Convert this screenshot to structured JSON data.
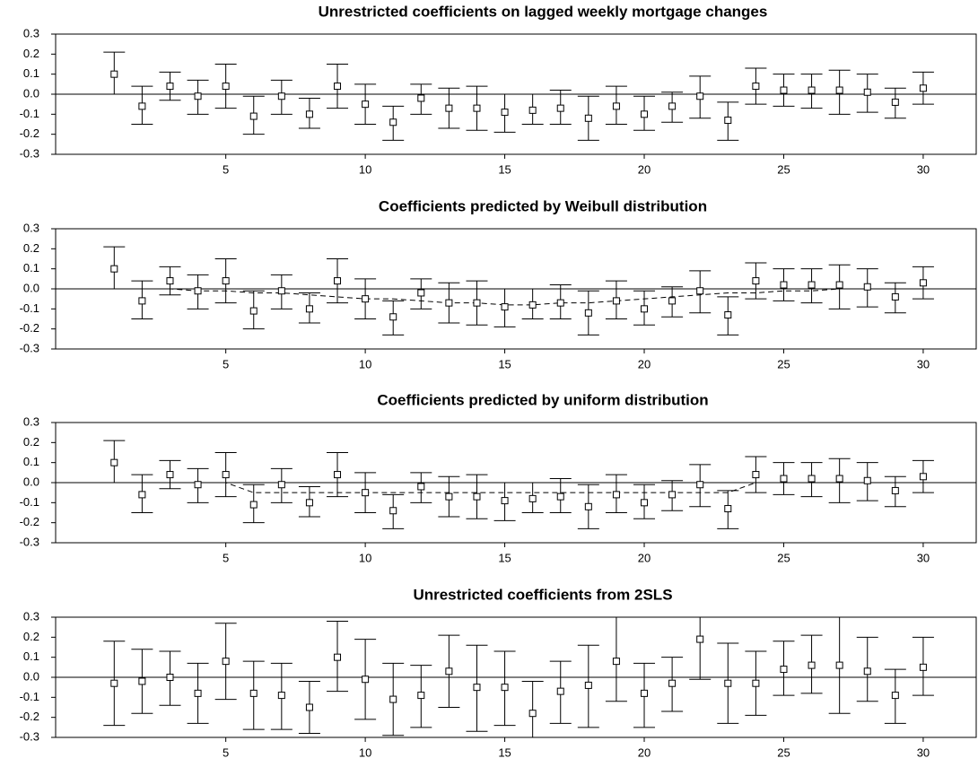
{
  "chart_data": [
    {
      "type": "errorbar",
      "title": "Unrestricted coefficients on lagged weekly mortgage changes",
      "x": [
        1,
        2,
        3,
        4,
        5,
        6,
        7,
        8,
        9,
        10,
        11,
        12,
        13,
        14,
        15,
        16,
        17,
        18,
        19,
        20,
        21,
        22,
        23,
        24,
        25,
        26,
        27,
        28,
        29,
        30
      ],
      "values": [
        0.1,
        -0.06,
        0.04,
        -0.01,
        0.04,
        -0.11,
        -0.01,
        -0.1,
        0.04,
        -0.05,
        -0.14,
        -0.02,
        -0.07,
        -0.07,
        -0.09,
        -0.08,
        -0.07,
        -0.12,
        -0.06,
        -0.1,
        -0.06,
        -0.01,
        -0.13,
        0.04,
        0.02,
        0.02,
        0.02,
        0.01,
        -0.04,
        0.03
      ],
      "lower": [
        0.0,
        -0.15,
        -0.03,
        -0.1,
        -0.07,
        -0.2,
        -0.1,
        -0.17,
        -0.07,
        -0.15,
        -0.23,
        -0.1,
        -0.17,
        -0.18,
        -0.19,
        -0.15,
        -0.15,
        -0.23,
        -0.15,
        -0.18,
        -0.14,
        -0.12,
        -0.23,
        -0.05,
        -0.06,
        -0.07,
        -0.1,
        -0.09,
        -0.12,
        -0.05
      ],
      "upper": [
        0.21,
        0.04,
        0.11,
        0.07,
        0.15,
        -0.01,
        0.07,
        -0.02,
        0.15,
        0.05,
        -0.06,
        0.05,
        0.03,
        0.04,
        0.0,
        0.0,
        0.02,
        -0.01,
        0.04,
        -0.01,
        0.01,
        0.09,
        -0.04,
        0.13,
        0.1,
        0.1,
        0.12,
        0.1,
        0.03,
        0.11
      ],
      "xlim": [
        -1.1,
        31.9
      ],
      "xticks": [
        5,
        10,
        15,
        20,
        25,
        30
      ],
      "ylim": [
        -0.3,
        0.3
      ],
      "yticks": [
        -0.3,
        -0.2,
        -0.1,
        {
          "value": 0,
          "label": "0.0"
        },
        0.1,
        0.2,
        0.3
      ],
      "zero_line": true,
      "color": "#000000"
    },
    {
      "type": "errorbar",
      "title": "Coefficients predicted by Weibull distribution",
      "x": [
        1,
        2,
        3,
        4,
        5,
        6,
        7,
        8,
        9,
        10,
        11,
        12,
        13,
        14,
        15,
        16,
        17,
        18,
        19,
        20,
        21,
        22,
        23,
        24,
        25,
        26,
        27,
        28,
        29,
        30
      ],
      "values": [
        0.1,
        -0.06,
        0.04,
        -0.01,
        0.04,
        -0.11,
        -0.01,
        -0.1,
        0.04,
        -0.05,
        -0.14,
        -0.02,
        -0.07,
        -0.07,
        -0.09,
        -0.08,
        -0.07,
        -0.12,
        -0.06,
        -0.1,
        -0.06,
        -0.01,
        -0.13,
        0.04,
        0.02,
        0.02,
        0.02,
        0.01,
        -0.04,
        0.03
      ],
      "lower": [
        0.0,
        -0.15,
        -0.03,
        -0.1,
        -0.07,
        -0.2,
        -0.1,
        -0.17,
        -0.07,
        -0.15,
        -0.23,
        -0.1,
        -0.17,
        -0.18,
        -0.19,
        -0.15,
        -0.15,
        -0.23,
        -0.15,
        -0.18,
        -0.14,
        -0.12,
        -0.23,
        -0.05,
        -0.06,
        -0.07,
        -0.1,
        -0.09,
        -0.12,
        -0.05
      ],
      "upper": [
        0.21,
        0.04,
        0.11,
        0.07,
        0.15,
        -0.01,
        0.07,
        -0.02,
        0.15,
        0.05,
        -0.06,
        0.05,
        0.03,
        0.04,
        0.0,
        0.0,
        0.02,
        -0.01,
        0.04,
        -0.01,
        0.01,
        0.09,
        -0.04,
        0.13,
        0.1,
        0.1,
        0.12,
        0.1,
        0.03,
        0.11
      ],
      "line_values": [
        0.0,
        0.0,
        0.0,
        -0.01,
        -0.01,
        -0.02,
        -0.02,
        -0.03,
        -0.04,
        -0.05,
        -0.05,
        -0.06,
        -0.07,
        -0.07,
        -0.08,
        -0.08,
        -0.07,
        -0.07,
        -0.06,
        -0.05,
        -0.04,
        -0.03,
        -0.02,
        -0.02,
        -0.01,
        -0.01,
        0.0,
        0.0,
        0.0,
        0.0
      ],
      "xlim": [
        -1.1,
        31.9
      ],
      "xticks": [
        5,
        10,
        15,
        20,
        25,
        30
      ],
      "ylim": [
        -0.3,
        0.3
      ],
      "yticks": [
        -0.3,
        -0.2,
        -0.1,
        {
          "value": 0,
          "label": "0.0"
        },
        0.1,
        0.2,
        0.3
      ],
      "zero_line": true,
      "color": "#000000"
    },
    {
      "type": "errorbar",
      "title": "Coefficients predicted by uniform distribution",
      "x": [
        1,
        2,
        3,
        4,
        5,
        6,
        7,
        8,
        9,
        10,
        11,
        12,
        13,
        14,
        15,
        16,
        17,
        18,
        19,
        20,
        21,
        22,
        23,
        24,
        25,
        26,
        27,
        28,
        29,
        30
      ],
      "values": [
        0.1,
        -0.06,
        0.04,
        -0.01,
        0.04,
        -0.11,
        -0.01,
        -0.1,
        0.04,
        -0.05,
        -0.14,
        -0.02,
        -0.07,
        -0.07,
        -0.09,
        -0.08,
        -0.07,
        -0.12,
        -0.06,
        -0.1,
        -0.06,
        -0.01,
        -0.13,
        0.04,
        0.02,
        0.02,
        0.02,
        0.01,
        -0.04,
        0.03
      ],
      "lower": [
        0.0,
        -0.15,
        -0.03,
        -0.1,
        -0.07,
        -0.2,
        -0.1,
        -0.17,
        -0.07,
        -0.15,
        -0.23,
        -0.1,
        -0.17,
        -0.18,
        -0.19,
        -0.15,
        -0.15,
        -0.23,
        -0.15,
        -0.18,
        -0.14,
        -0.12,
        -0.23,
        -0.05,
        -0.06,
        -0.07,
        -0.1,
        -0.09,
        -0.12,
        -0.05
      ],
      "upper": [
        0.21,
        0.04,
        0.11,
        0.07,
        0.15,
        -0.01,
        0.07,
        -0.02,
        0.15,
        0.05,
        -0.06,
        0.05,
        0.03,
        0.04,
        0.0,
        0.0,
        0.02,
        -0.01,
        0.04,
        -0.01,
        0.01,
        0.09,
        -0.04,
        0.13,
        0.1,
        0.1,
        0.12,
        0.1,
        0.03,
        0.11
      ],
      "line_values": [
        0.0,
        0.0,
        0.0,
        0.0,
        0.0,
        -0.05,
        -0.05,
        -0.05,
        -0.05,
        -0.05,
        -0.05,
        -0.05,
        -0.05,
        -0.05,
        -0.05,
        -0.05,
        -0.05,
        -0.05,
        -0.05,
        -0.05,
        -0.05,
        -0.05,
        -0.05,
        0.0,
        0.0,
        0.0,
        0.0,
        0.0,
        0.0,
        0.0
      ],
      "xlim": [
        -1.1,
        31.9
      ],
      "xticks": [
        5,
        10,
        15,
        20,
        25,
        30
      ],
      "ylim": [
        -0.3,
        0.3
      ],
      "yticks": [
        -0.3,
        -0.2,
        -0.1,
        {
          "value": 0,
          "label": "0.0"
        },
        0.1,
        0.2,
        0.3
      ],
      "zero_line": true,
      "color": "#000000"
    },
    {
      "type": "errorbar",
      "title": "Unrestricted coefficients from 2SLS",
      "x": [
        1,
        2,
        3,
        4,
        5,
        6,
        7,
        8,
        9,
        10,
        11,
        12,
        13,
        14,
        15,
        16,
        17,
        18,
        19,
        20,
        21,
        22,
        23,
        24,
        25,
        26,
        27,
        28,
        29,
        30
      ],
      "values": [
        -0.03,
        -0.02,
        0.0,
        -0.08,
        0.08,
        -0.08,
        -0.09,
        -0.15,
        0.1,
        -0.01,
        -0.11,
        -0.09,
        0.03,
        -0.05,
        -0.05,
        -0.18,
        -0.07,
        -0.04,
        0.08,
        -0.08,
        -0.03,
        0.19,
        -0.03,
        -0.03,
        0.04,
        0.06,
        0.06,
        0.03,
        -0.09,
        0.05
      ],
      "lower": [
        -0.24,
        -0.18,
        -0.14,
        -0.23,
        -0.11,
        -0.26,
        -0.26,
        -0.28,
        -0.07,
        -0.21,
        -0.29,
        -0.25,
        -0.15,
        -0.27,
        -0.24,
        -0.34,
        -0.23,
        -0.25,
        -0.12,
        -0.25,
        -0.17,
        -0.01,
        -0.23,
        -0.19,
        -0.09,
        -0.08,
        -0.18,
        -0.12,
        -0.23,
        -0.09
      ],
      "upper": [
        0.18,
        0.14,
        0.13,
        0.07,
        0.27,
        0.08,
        0.07,
        -0.02,
        0.28,
        0.19,
        0.07,
        0.06,
        0.21,
        0.16,
        0.13,
        -0.02,
        0.08,
        0.16,
        0.3,
        0.07,
        0.1,
        0.3,
        0.17,
        0.13,
        0.18,
        0.21,
        0.3,
        0.2,
        0.04,
        0.2
      ],
      "xlim": [
        -1.1,
        31.9
      ],
      "xticks": [
        5,
        10,
        15,
        20,
        25,
        30
      ],
      "ylim": [
        -0.3,
        0.3
      ],
      "yticks": [
        -0.3,
        -0.2,
        -0.1,
        {
          "value": 0,
          "label": "0.0"
        },
        0.1,
        0.2,
        0.3
      ],
      "zero_line": true,
      "color": "#000000"
    }
  ]
}
